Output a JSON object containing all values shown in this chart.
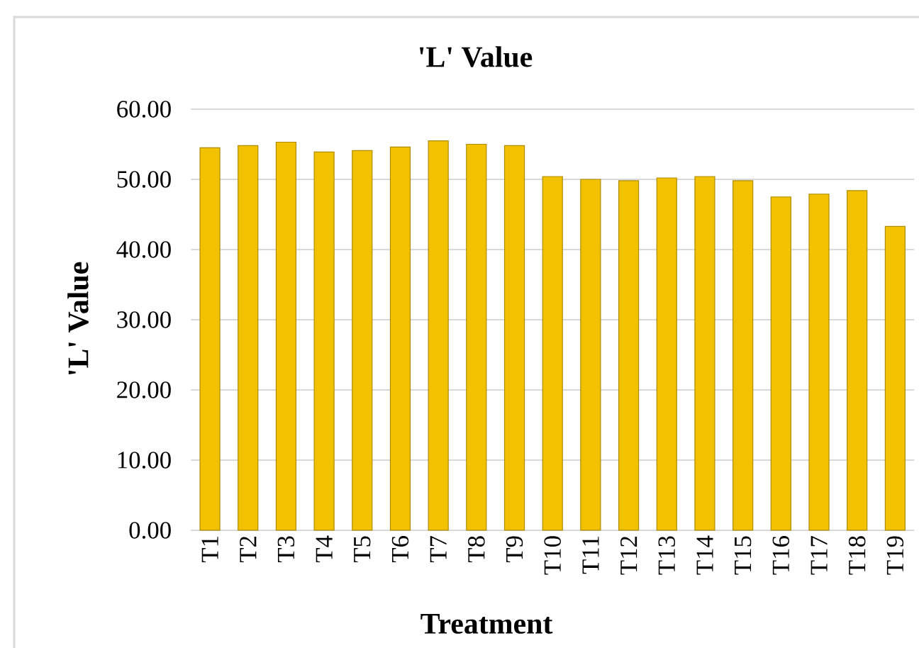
{
  "chart_data": {
    "type": "bar",
    "title": "'L' Value",
    "xlabel": "Treatment",
    "ylabel": "'L' Value",
    "categories": [
      "T1",
      "T2",
      "T3",
      "T4",
      "T5",
      "T6",
      "T7",
      "T8",
      "T9",
      "T10",
      "T11",
      "T12",
      "T13",
      "T14",
      "T15",
      "T16",
      "T17",
      "T18",
      "T19"
    ],
    "values": [
      54.5,
      54.8,
      55.3,
      53.9,
      54.1,
      54.6,
      55.5,
      55.0,
      54.8,
      50.4,
      50.0,
      49.8,
      50.2,
      50.4,
      49.8,
      47.5,
      47.9,
      48.4,
      43.3
    ],
    "color": "#f2c200",
    "ylim": [
      0,
      60
    ],
    "yticks": [
      {
        "value": 0,
        "label": "0.00"
      },
      {
        "value": 10,
        "label": "10.00"
      },
      {
        "value": 20,
        "label": "20.00"
      },
      {
        "value": 30,
        "label": "30.00"
      },
      {
        "value": 40,
        "label": "40.00"
      },
      {
        "value": 50,
        "label": "50.00"
      },
      {
        "value": 60,
        "label": "60.00"
      }
    ],
    "grid": "y"
  }
}
